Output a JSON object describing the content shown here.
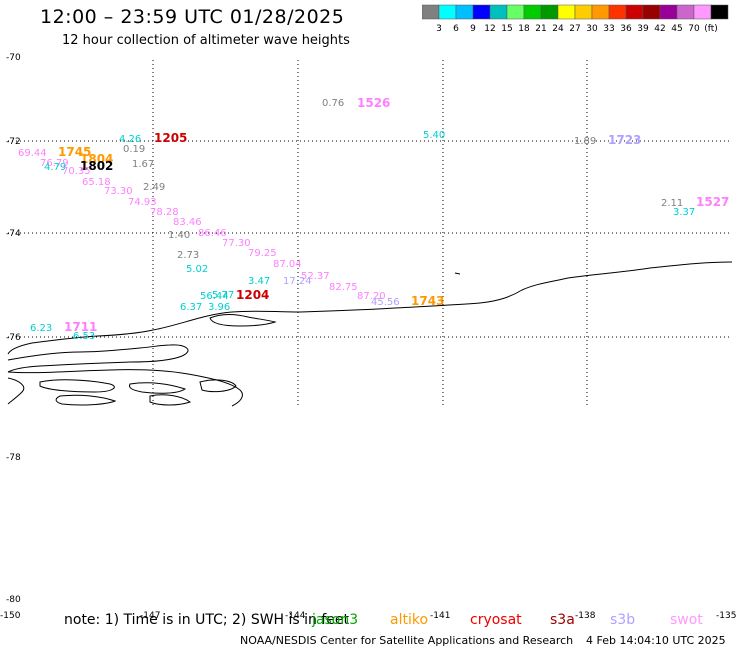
{
  "header": {
    "title": "12:00 – 23:59 UTC 01/28/2025",
    "subtitle": "12 hour collection of altimeter wave heights"
  },
  "scale": {
    "colors": [
      "#808080",
      "#00ffff",
      "#00bfff",
      "#0000ff",
      "#00bfbf",
      "#66ff66",
      "#00cc00",
      "#009900",
      "#ffff00",
      "#ffcc00",
      "#ff9900",
      "#ff3300",
      "#cc0000",
      "#990000",
      "#990099",
      "#cc66cc",
      "#ff99ff",
      "#000000"
    ],
    "labels": [
      "3",
      "6",
      "9",
      "12",
      "15",
      "18",
      "21",
      "24",
      "27",
      "30",
      "33",
      "36",
      "39",
      "42",
      "45",
      "70",
      "(ft)"
    ]
  },
  "axes": {
    "lat_labels": [
      "-70",
      "-72",
      "-74",
      "-76",
      "-78",
      "-80"
    ],
    "lon_labels": [
      "-150",
      "-147",
      "-144",
      "-141",
      "-138",
      "-135"
    ]
  },
  "observations": [
    {
      "text": "0.76",
      "color": "#808080"
    },
    {
      "text": "1526",
      "color": "#ff80ff"
    },
    {
      "text": "5.40",
      "color": "#00d0d0"
    },
    {
      "text": "1.89",
      "color": "#808080"
    },
    {
      "text": "1723",
      "color": "#b0a0ff"
    },
    {
      "text": "4.26",
      "color": "#00d0d0"
    },
    {
      "text": "1205",
      "color": "#cc0000"
    },
    {
      "text": "69.44",
      "color": "#ff80ff"
    },
    {
      "text": "1745",
      "color": "#ff9900"
    },
    {
      "text": "0.19",
      "color": "#808080"
    },
    {
      "text": "76.79",
      "color": "#ff80ff"
    },
    {
      "text": "4.79",
      "color": "#00d0d0"
    },
    {
      "text": "1804",
      "color": "#ff9900"
    },
    {
      "text": "1802",
      "color": "#000000"
    },
    {
      "text": "1.67",
      "color": "#808080"
    },
    {
      "text": "70.35",
      "color": "#ff80ff"
    },
    {
      "text": "65.18",
      "color": "#ff80ff"
    },
    {
      "text": "2.49",
      "color": "#808080"
    },
    {
      "text": "73.30",
      "color": "#ff80ff"
    },
    {
      "text": "74.93",
      "color": "#ff80ff"
    },
    {
      "text": "2.11",
      "color": "#808080"
    },
    {
      "text": "1527",
      "color": "#ff80ff"
    },
    {
      "text": "3.37",
      "color": "#00d0d0"
    },
    {
      "text": "78.28",
      "color": "#ff80ff"
    },
    {
      "text": "83.46",
      "color": "#ff80ff"
    },
    {
      "text": "1.40",
      "color": "#808080"
    },
    {
      "text": "86.46",
      "color": "#ff80ff"
    },
    {
      "text": "77.30",
      "color": "#ff80ff"
    },
    {
      "text": "2.73",
      "color": "#808080"
    },
    {
      "text": "79.25",
      "color": "#ff80ff"
    },
    {
      "text": "5.02",
      "color": "#00d0d0"
    },
    {
      "text": "87.04",
      "color": "#ff80ff"
    },
    {
      "text": "52.37",
      "color": "#ff80ff"
    },
    {
      "text": "3.47",
      "color": "#00d0d0"
    },
    {
      "text": "17.24",
      "color": "#b0a0ff"
    },
    {
      "text": "82.75",
      "color": "#ff80ff"
    },
    {
      "text": "5.77",
      "color": "#00d0d0"
    },
    {
      "text": "56.44",
      "color": "#00d0d0"
    },
    {
      "text": "1204",
      "color": "#cc0000"
    },
    {
      "text": "87.20",
      "color": "#ff80ff"
    },
    {
      "text": "45.56",
      "color": "#b0a0ff"
    },
    {
      "text": "1743",
      "color": "#ff9900"
    },
    {
      "text": "6.37",
      "color": "#00d0d0"
    },
    {
      "text": "3.96",
      "color": "#00d0d0"
    },
    {
      "text": "6.23",
      "color": "#00d0d0"
    },
    {
      "text": "1711",
      "color": "#ff80ff"
    },
    {
      "text": "6.53",
      "color": "#00d0d0"
    }
  ],
  "footer": {
    "note": "note: 1) Time is in UTC; 2) SWH is in feet",
    "credit": "NOAA/NESDIS Center for Satellite Applications and Research",
    "timestamp": "4 Feb 14:04:10 UTC 2025"
  },
  "satellites": [
    {
      "name": "jason3",
      "color": "#00aa00"
    },
    {
      "name": "altiko",
      "color": "#ff9900"
    },
    {
      "name": "cryosat",
      "color": "#ee0000"
    },
    {
      "name": "s3a",
      "color": "#990000"
    },
    {
      "name": "s3b",
      "color": "#b0a0ff"
    },
    {
      "name": "swot",
      "color": "#ff99ff"
    }
  ]
}
